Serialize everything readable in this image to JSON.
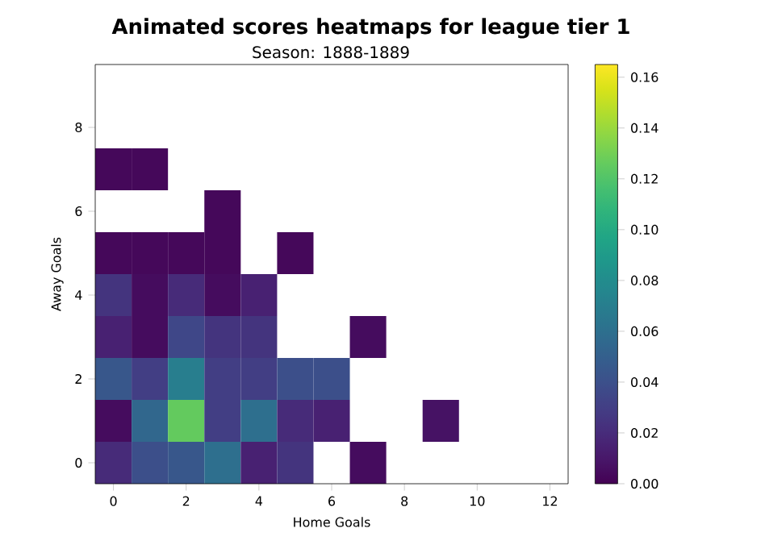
{
  "chart_data": {
    "type": "heatmap",
    "title": "Animated scores heatmaps for league tier 1",
    "subtitle": "Season: 1888-1889",
    "xlabel": "Home Goals",
    "ylabel": "Away Goals",
    "x": [
      0,
      1,
      2,
      3,
      4,
      5,
      6,
      7,
      8,
      9,
      10,
      11,
      12
    ],
    "y": [
      7,
      6,
      5,
      4,
      3,
      2,
      1,
      0
    ],
    "xlim": [
      -0.5,
      12.5
    ],
    "ylim": [
      -0.5,
      9.5
    ],
    "xticks": [
      0,
      2,
      4,
      6,
      8,
      10,
      12
    ],
    "yticks": [
      0,
      2,
      4,
      6,
      8
    ],
    "cells": [
      [
        0.003,
        0.003,
        null,
        null,
        null,
        null,
        null,
        null,
        null,
        null,
        null,
        null,
        null
      ],
      [
        null,
        null,
        null,
        0.003,
        null,
        null,
        null,
        null,
        null,
        null,
        null,
        null,
        null
      ],
      [
        0.003,
        0.003,
        0.003,
        0.003,
        null,
        0.003,
        null,
        null,
        null,
        null,
        null,
        null,
        null
      ],
      [
        0.025,
        0.005,
        0.02,
        0.005,
        0.015,
        null,
        null,
        null,
        null,
        null,
        null,
        null,
        null
      ],
      [
        0.015,
        0.005,
        0.035,
        0.025,
        0.025,
        null,
        null,
        0.005,
        null,
        null,
        null,
        null,
        null
      ],
      [
        0.045,
        0.03,
        0.07,
        0.03,
        0.03,
        0.04,
        0.04,
        null,
        null,
        null,
        null,
        null,
        null
      ],
      [
        0.005,
        0.055,
        0.125,
        0.03,
        0.06,
        0.02,
        0.015,
        null,
        null,
        0.008,
        null,
        null,
        null
      ],
      [
        0.02,
        0.04,
        0.045,
        0.06,
        0.015,
        0.025,
        null,
        0.005,
        null,
        null,
        null,
        null,
        null
      ]
    ],
    "clim": [
      0,
      0.165
    ],
    "cticks": [
      {
        "value": 0,
        "label": "0.00"
      },
      {
        "value": 0.02,
        "label": "0.02"
      },
      {
        "value": 0.04,
        "label": "0.04"
      },
      {
        "value": 0.06,
        "label": "0.06"
      },
      {
        "value": 0.08,
        "label": "0.08"
      },
      {
        "value": 0.1,
        "label": "0.10"
      },
      {
        "value": 0.12,
        "label": "0.12"
      },
      {
        "value": 0.14,
        "label": "0.14"
      },
      {
        "value": 0.16,
        "label": "0.16"
      }
    ]
  }
}
